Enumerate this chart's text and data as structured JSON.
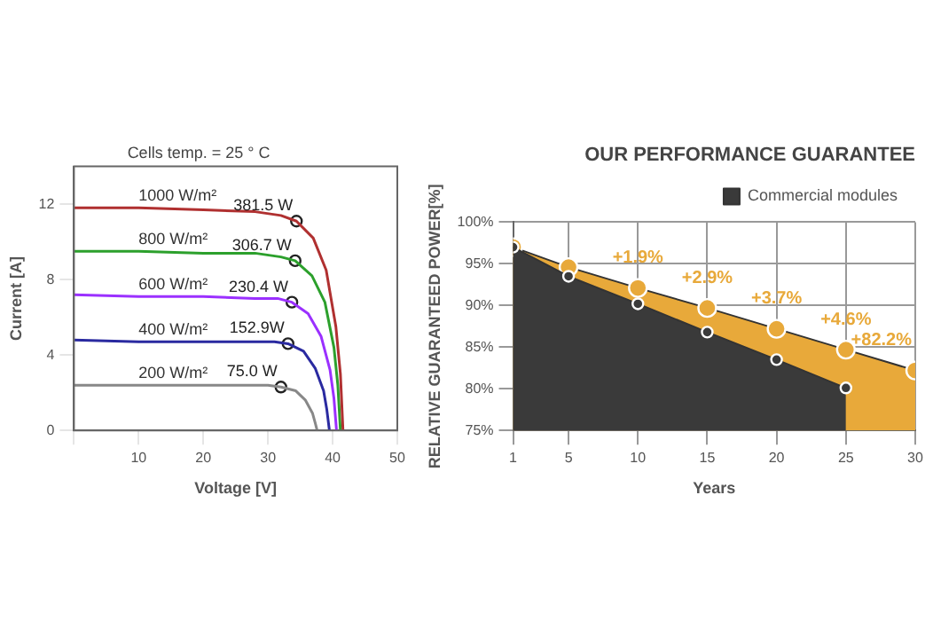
{
  "chart_data": [
    {
      "type": "line",
      "title": "Cells temp. = 25 ° C",
      "xlabel": "Voltage [V]",
      "ylabel": "Current [A]",
      "xlim": [
        0,
        50
      ],
      "ylim": [
        0,
        14
      ],
      "xticks": [
        {
          "value": 0,
          "label": null
        },
        10,
        20,
        30,
        40,
        50
      ],
      "yticks": [
        0,
        4,
        8,
        12
      ],
      "grid": false,
      "legend": false,
      "series": [
        {
          "name": "1000 W/m²",
          "color": "#b03030",
          "marker": "none",
          "x": [
            0,
            10,
            20,
            28,
            32,
            34.4,
            37,
            39,
            40.5,
            41.2,
            41.6
          ],
          "values": [
            11.8,
            11.8,
            11.7,
            11.6,
            11.4,
            11.1,
            10.2,
            8.5,
            5.5,
            3,
            0
          ]
        },
        {
          "name": "800 W/m²",
          "color": "#2ca02c",
          "marker": "none",
          "x": [
            0,
            10,
            20,
            28,
            32,
            34.2,
            36.8,
            38.8,
            40.2,
            40.8,
            41.2
          ],
          "values": [
            9.5,
            9.5,
            9.4,
            9.4,
            9.2,
            9.0,
            8.2,
            6.8,
            4.4,
            2.4,
            0
          ]
        },
        {
          "name": "600 W/m²",
          "color": "#9b30ff",
          "marker": "none",
          "x": [
            0,
            10,
            20,
            28,
            31.5,
            33.7,
            36.2,
            38.2,
            39.6,
            40.2,
            40.6
          ],
          "values": [
            7.2,
            7.1,
            7.1,
            7.0,
            7.0,
            6.8,
            6.2,
            5.0,
            3.2,
            1.7,
            0
          ]
        },
        {
          "name": "400 W/m²",
          "color": "#2a2aa0",
          "marker": "none",
          "x": [
            0,
            10,
            20,
            28,
            31,
            33.1,
            35.5,
            37.3,
            38.6,
            39.1,
            39.5
          ],
          "values": [
            4.8,
            4.7,
            4.7,
            4.7,
            4.7,
            4.6,
            4.2,
            3.3,
            2.1,
            1.1,
            0
          ]
        },
        {
          "name": "200 W/m²",
          "color": "#888888",
          "marker": "none",
          "x": [
            0,
            10,
            20,
            28,
            30,
            32,
            34.3,
            35.8,
            36.9,
            37.3,
            37.6
          ],
          "values": [
            2.4,
            2.4,
            2.4,
            2.4,
            2.4,
            2.3,
            2.1,
            1.6,
            0.9,
            0.4,
            0
          ]
        },
        {
          "type": "scatter",
          "color": "#222222",
          "marker": "circle",
          "x": [
            34.4,
            34.2,
            33.7,
            33.1,
            32
          ],
          "values": [
            11.1,
            9.0,
            6.8,
            4.6,
            2.3
          ]
        }
      ],
      "annotations": [
        {
          "text": "381.5 W",
          "x": 34.4,
          "y": 11.1
        },
        {
          "text": "306.7 W",
          "x": 34.2,
          "y": 9.0
        },
        {
          "text": "230.4 W",
          "x": 33.7,
          "y": 6.8
        },
        {
          "text": "152.9W",
          "x": 33.1,
          "y": 4.6
        },
        {
          "text": "75.0 W",
          "x": 32,
          "y": 2.3
        }
      ]
    },
    {
      "type": "area",
      "title": "OUR PERFORMANCE GUARANTEE",
      "xlabel": "Years",
      "ylabel": "RELATIVE GUARANTEED POWER[%]",
      "xlim": [
        1,
        30
      ],
      "ylim": [
        75,
        100
      ],
      "xticks": [
        1,
        5,
        10,
        15,
        20,
        25,
        30
      ],
      "yticks": [
        {
          "value": 75,
          "label": "75%"
        },
        {
          "value": 80,
          "label": "80%"
        },
        {
          "value": 85,
          "label": "85%"
        },
        {
          "value": 90,
          "label": "90%"
        },
        {
          "value": 95,
          "label": "95%"
        },
        {
          "value": 100,
          "label": "100%"
        }
      ],
      "grid": true,
      "legend": "top right",
      "marker": "circle",
      "series": [
        {
          "name": "Commercial modules",
          "color": "#3a3a3a",
          "x": [
            1,
            5,
            10,
            15,
            20,
            25
          ],
          "values": [
            97,
            93.5,
            90.2,
            86.8,
            83.5,
            80.1
          ]
        },
        {
          "color": "#e8a93a",
          "x": [
            1,
            5,
            10,
            15,
            20,
            25,
            30
          ],
          "values": [
            97,
            94.6,
            92.1,
            89.7,
            87.2,
            84.7,
            82.2
          ]
        }
      ],
      "annotations": [
        {
          "text": "+1.9%",
          "x": 10,
          "y": 92.1
        },
        {
          "text": "+2.9%",
          "x": 15,
          "y": 89.7
        },
        {
          "text": "+3.7%",
          "x": 20,
          "y": 87.2
        },
        {
          "text": "+4.6%",
          "x": 25,
          "y": 84.7
        },
        {
          "text": "+82.2%",
          "x": 30,
          "y": 82.2
        }
      ]
    }
  ]
}
